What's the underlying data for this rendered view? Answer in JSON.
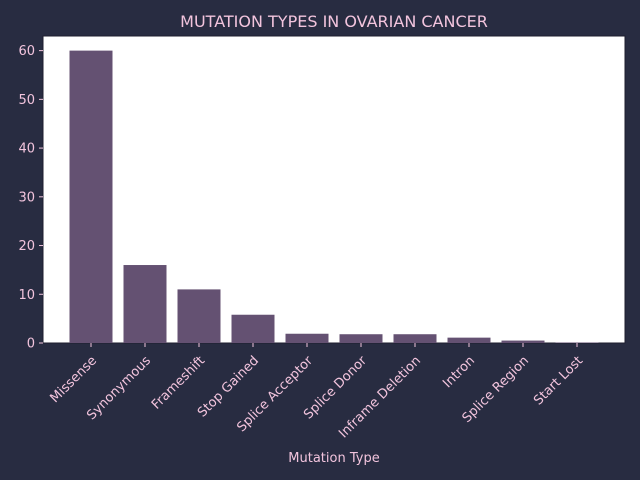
{
  "chart_data": {
    "type": "bar",
    "title": "MUTATION TYPES IN OVARIAN CANCER",
    "xlabel": "Mutation Type",
    "ylabel": "",
    "categories": [
      "Missense",
      "Synonymous",
      "Frameshift",
      "Stop Gained",
      "Splice Acceptor",
      "Splice Donor",
      "Inframe Deletion",
      "Intron",
      "Splice Region",
      "Start Lost"
    ],
    "values": [
      60,
      16,
      11,
      5.8,
      1.9,
      1.8,
      1.8,
      1.1,
      0.5,
      0.1
    ],
    "ylim": [
      0,
      63
    ],
    "yticks": [
      0,
      10,
      20,
      30,
      40,
      50,
      60
    ],
    "grid": false,
    "colors": {
      "background": "#282c41",
      "plot_area": "#ffffff",
      "bar": "#645172",
      "text": "#f2c4dd",
      "axis": "#1e1e2e"
    }
  }
}
